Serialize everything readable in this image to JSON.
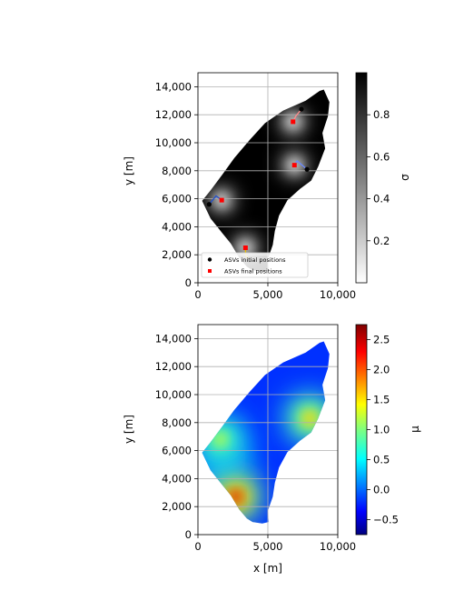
{
  "chart_data": [
    {
      "type": "heatmap",
      "title": "",
      "xlabel": "",
      "ylabel": "y [m]",
      "xlim": [
        0,
        10000
      ],
      "ylim": [
        15000,
        0
      ],
      "y_inverted": true,
      "grid": true,
      "xticks": [
        "0",
        "5,000",
        "10,000"
      ],
      "yticks": [
        "0",
        "2,000",
        "4,000",
        "6,000",
        "8,000",
        "10,000",
        "12,000",
        "14,000"
      ],
      "colormap": "greys",
      "colorbar": {
        "label": "σ",
        "min": 0.0,
        "max": 1.0,
        "ticks": [
          "0.2",
          "0.4",
          "0.6",
          "0.8"
        ]
      },
      "legend": {
        "placement": "lower-center",
        "entries": [
          {
            "label": "ASVs initial positions",
            "color": "#000000",
            "marker": "circle"
          },
          {
            "label": "ASVs final positions",
            "color": "#ff0000",
            "marker": "square"
          }
        ]
      },
      "series": [
        {
          "name": "ASVs initial positions",
          "points": [
            [
              3700,
              1600
            ],
            [
              800,
              5600
            ],
            [
              7800,
              8100
            ],
            [
              7400,
              12400
            ]
          ]
        },
        {
          "name": "ASVs final positions",
          "points": [
            [
              3400,
              2500
            ],
            [
              1700,
              5900
            ],
            [
              6900,
              8400
            ],
            [
              6800,
              11500
            ]
          ]
        }
      ],
      "trajectories": [
        [
          [
            3700,
            1600
          ],
          [
            3400,
            2000
          ],
          [
            3400,
            2500
          ]
        ],
        [
          [
            800,
            5600
          ],
          [
            1300,
            6200
          ],
          [
            1700,
            5900
          ]
        ],
        [
          [
            7800,
            8100
          ],
          [
            7100,
            8700
          ],
          [
            6900,
            8400
          ]
        ],
        [
          [
            7400,
            12400
          ],
          [
            7000,
            11900
          ],
          [
            6800,
            11500
          ]
        ]
      ]
    },
    {
      "type": "heatmap",
      "title": "",
      "xlabel": "x [m]",
      "ylabel": "y [m]",
      "xlim": [
        0,
        10000
      ],
      "ylim": [
        15000,
        0
      ],
      "y_inverted": true,
      "grid": true,
      "xticks": [
        "0",
        "5,000",
        "10,000"
      ],
      "yticks": [
        "0",
        "2,000",
        "4,000",
        "6,000",
        "8,000",
        "10,000",
        "12,000",
        "14,000"
      ],
      "colormap": "jet",
      "colorbar": {
        "label": "μ",
        "min": -0.75,
        "max": 2.75,
        "ticks": [
          "−0.5",
          "0.0",
          "0.5",
          "1.0",
          "1.5",
          "2.0",
          "2.5"
        ]
      },
      "hotspots": [
        {
          "x": 2700,
          "y": 2700,
          "value": 2.7
        },
        {
          "x": 1600,
          "y": 6800,
          "value": 1.5
        },
        {
          "x": 8000,
          "y": 8300,
          "value": 1.9
        }
      ]
    }
  ]
}
